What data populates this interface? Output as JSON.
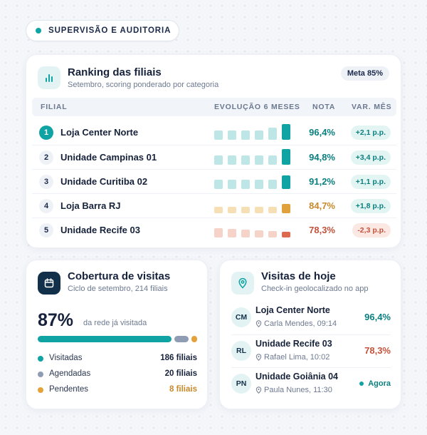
{
  "section_pill": {
    "label": "SUPERVISÃO E AUDITORIA"
  },
  "ranking": {
    "title": "Ranking das filiais",
    "subtitle": "Setembro, scoring ponderado por categoria",
    "goal_badge": "Meta 85%",
    "columns": {
      "branch": "FILIAL",
      "trend": "EVOLUÇÃO 6 MESES",
      "score": "NOTA",
      "change": "VAR. MÊS"
    },
    "rows": [
      {
        "rank": "1",
        "name": "Loja Center Norte",
        "score": "96,4%",
        "change": "+2,1 p.p.",
        "trend_levels": [
          0.6,
          0.6,
          0.6,
          0.6,
          0.75,
          1.0
        ],
        "tone": "teal"
      },
      {
        "rank": "2",
        "name": "Unidade Campinas 01",
        "score": "94,8%",
        "change": "+3,4 p.p.",
        "trend_levels": [
          0.6,
          0.6,
          0.6,
          0.6,
          0.6,
          1.0
        ],
        "tone": "teal"
      },
      {
        "rank": "3",
        "name": "Unidade Curitiba 02",
        "score": "91,2%",
        "change": "+1,1 p.p.",
        "trend_levels": [
          0.6,
          0.6,
          0.6,
          0.6,
          0.6,
          0.85
        ],
        "tone": "teal"
      },
      {
        "rank": "4",
        "name": "Loja Barra RJ",
        "score": "84,7%",
        "change": "+1,8 p.p.",
        "trend_levels": [
          0.4,
          0.4,
          0.4,
          0.4,
          0.4,
          0.6
        ],
        "tone": "amber"
      },
      {
        "rank": "5",
        "name": "Unidade Recife 03",
        "score": "78,3%",
        "change": "-2,3 p.p.",
        "trend_levels": [
          0.6,
          0.55,
          0.5,
          0.45,
          0.4,
          0.35
        ],
        "tone": "red"
      }
    ]
  },
  "coverage": {
    "title": "Cobertura de visitas",
    "subtitle": "Ciclo de setembro, 214 filiais",
    "percent": "87%",
    "caption": "da rede já visitada",
    "segments": [
      {
        "label": "Visitadas",
        "value": "186 filiais",
        "count": 186,
        "color": "#0fa3a3"
      },
      {
        "label": "Agendadas",
        "value": "20 filiais",
        "count": 20,
        "color": "#8e9cb4"
      },
      {
        "label": "Pendentes",
        "value": "8 filiais",
        "count": 8,
        "color": "#e5a23a"
      }
    ]
  },
  "visits": {
    "title": "Visitas de hoje",
    "subtitle": "Check-in geolocalizado no app",
    "items": [
      {
        "initials": "CM",
        "store": "Loja Center Norte",
        "person": "Carla Mendes, 09:14",
        "score": "96,4%",
        "tone": "teal"
      },
      {
        "initials": "RL",
        "store": "Unidade Recife 03",
        "person": "Rafael Lima, 10:02",
        "score": "78,3%",
        "tone": "red"
      },
      {
        "initials": "PN",
        "store": "Unidade Goiânia 04",
        "person": "Paula Nunes, 11:30",
        "status": "Agora"
      }
    ]
  },
  "colors": {
    "teal": "#0fa3a3",
    "teal_text": "#0b7f7f",
    "amber": "#c8892a",
    "red": "#c4523b",
    "navy": "#13304a"
  }
}
